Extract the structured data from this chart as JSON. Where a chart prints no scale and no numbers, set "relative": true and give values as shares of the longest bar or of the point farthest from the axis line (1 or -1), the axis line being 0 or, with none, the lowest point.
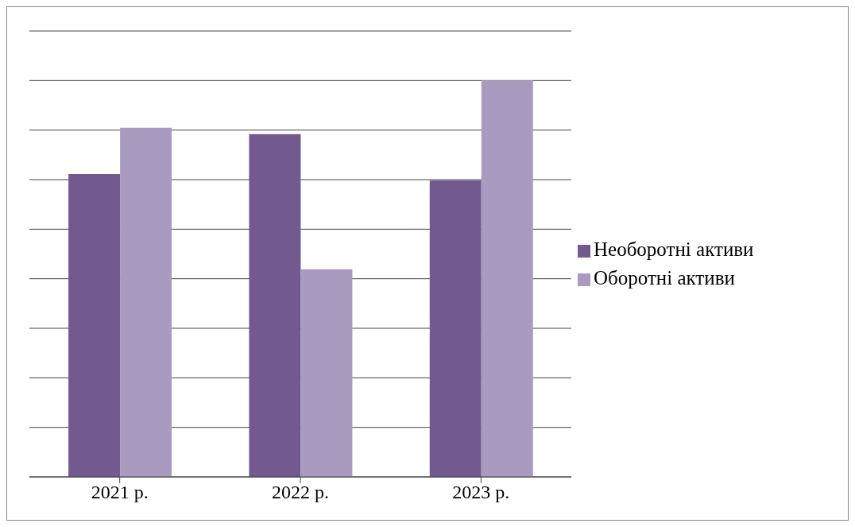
{
  "chart_data": {
    "type": "bar",
    "relative": true,
    "categories": [
      "2021 р.",
      "2022 р.",
      "2023 р."
    ],
    "series": [
      {
        "name": "Необоротні активи",
        "color": "#725a8f",
        "values": [
          0.764,
          0.865,
          0.748
        ]
      },
      {
        "name": "Оборотні активи",
        "color": "#a99bbf",
        "values": [
          0.881,
          0.524,
          1
        ]
      }
    ],
    "grid": "y",
    "legend": "right"
  }
}
